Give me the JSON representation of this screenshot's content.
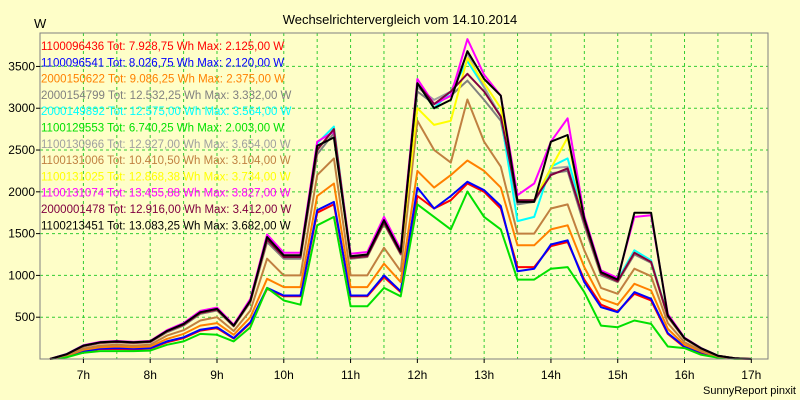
{
  "chart_data": {
    "type": "line",
    "title": "Wechselrichtervergleich vom 14.10.2014",
    "ylabel": "W",
    "xlabel": "",
    "footer": "SunnyReport pinxit",
    "grid": true,
    "legend_placement": "top-left",
    "xlim": [
      6.35,
      17.25
    ],
    "ylim": [
      0,
      3900
    ],
    "yticks": [
      500,
      1000,
      1500,
      2000,
      2500,
      3000,
      3500
    ],
    "xticks": [
      {
        "value": 7,
        "label": "7h"
      },
      {
        "value": 8,
        "label": "8h"
      },
      {
        "value": 9,
        "label": "9h"
      },
      {
        "value": 10,
        "label": "10h"
      },
      {
        "value": 11,
        "label": "11h"
      },
      {
        "value": 12,
        "label": "12h"
      },
      {
        "value": 13,
        "label": "13h"
      },
      {
        "value": 14,
        "label": "14h"
      },
      {
        "value": 15,
        "label": "15h"
      },
      {
        "value": 16,
        "label": "16h"
      },
      {
        "value": 17,
        "label": "17h"
      }
    ],
    "x": [
      6.5,
      6.75,
      7.0,
      7.25,
      7.5,
      7.75,
      8.0,
      8.25,
      8.5,
      8.75,
      9.0,
      9.25,
      9.5,
      9.75,
      10.0,
      10.25,
      10.5,
      10.75,
      11.0,
      11.25,
      11.5,
      11.75,
      12.0,
      12.25,
      12.5,
      12.75,
      13.0,
      13.25,
      13.5,
      13.75,
      14.0,
      14.25,
      14.5,
      14.75,
      15.0,
      15.25,
      15.5,
      15.75,
      16.0,
      16.25,
      16.5,
      16.75,
      17.0
    ],
    "series": [
      {
        "name": "1100096436",
        "label": "1100096436 Tot: 7.928,75 Wh Max: 2.125,00 W",
        "color": "#ff0000",
        "values": [
          0,
          30,
          90,
          120,
          120,
          115,
          125,
          200,
          250,
          340,
          370,
          245,
          430,
          840,
          750,
          750,
          1750,
          1850,
          750,
          750,
          980,
          800,
          1950,
          1800,
          1900,
          2100,
          2000,
          1800,
          1100,
          1100,
          1350,
          1400,
          950,
          650,
          570,
          780,
          700,
          300,
          140,
          70,
          20,
          5,
          0
        ]
      },
      {
        "name": "1100096541",
        "label": "1100096541 Tot: 8.026,75 Wh Max: 2.120,00 W",
        "color": "#0000ff",
        "values": [
          0,
          35,
          95,
          125,
          130,
          125,
          130,
          210,
          260,
          350,
          380,
          250,
          440,
          850,
          760,
          760,
          1780,
          1880,
          760,
          760,
          1000,
          810,
          2050,
          1800,
          1950,
          2120,
          2020,
          1830,
          1050,
          1080,
          1370,
          1420,
          920,
          620,
          560,
          800,
          720,
          310,
          150,
          80,
          25,
          5,
          0
        ]
      },
      {
        "name": "2000150622",
        "label": "2000150622 Tot: 9.086,25 Wh Max: 2.375,00 W",
        "color": "#ff8000",
        "values": [
          0,
          40,
          110,
          140,
          150,
          140,
          150,
          240,
          300,
          400,
          430,
          290,
          500,
          960,
          860,
          860,
          1950,
          2100,
          860,
          860,
          1140,
          920,
          2250,
          2050,
          2200,
          2375,
          2250,
          2050,
          1360,
          1360,
          1550,
          1600,
          1100,
          720,
          650,
          900,
          820,
          360,
          170,
          90,
          25,
          5,
          0
        ]
      },
      {
        "name": "2000154799",
        "label": "2000154799 Tot: 12.532,25 Wh Max: 3.332,00 W",
        "color": "#808080",
        "values": [
          0,
          55,
          150,
          190,
          200,
          190,
          200,
          320,
          400,
          540,
          580,
          390,
          680,
          1400,
          1200,
          1200,
          2450,
          2700,
          1200,
          1220,
          1620,
          1250,
          3200,
          3050,
          3150,
          3330,
          3100,
          2850,
          1850,
          1880,
          2220,
          2250,
          1600,
          1000,
          920,
          1250,
          1150,
          500,
          240,
          120,
          35,
          8,
          0
        ]
      },
      {
        "name": "2000149892",
        "label": "2000149892 Tot: 12.575,00 Wh Max: 3.564,00 W",
        "color": "#00ffff",
        "values": [
          0,
          60,
          165,
          200,
          210,
          200,
          210,
          340,
          430,
          560,
          600,
          400,
          700,
          1450,
          1230,
          1230,
          2580,
          2780,
          1230,
          1240,
          1640,
          1270,
          3300,
          3000,
          3200,
          3564,
          3250,
          2900,
          1650,
          1700,
          2300,
          2400,
          1700,
          1050,
          950,
          1300,
          1180,
          520,
          250,
          130,
          40,
          10,
          0
        ]
      },
      {
        "name": "1100129553",
        "label": "1100129553 Tot: 6.740,25 Wh Max: 2.003,00 W",
        "color": "#00e000",
        "values": [
          0,
          20,
          75,
          95,
          95,
          95,
          100,
          170,
          210,
          300,
          290,
          210,
          380,
          850,
          700,
          650,
          1600,
          1700,
          630,
          630,
          850,
          750,
          1850,
          1700,
          1550,
          2003,
          1700,
          1550,
          950,
          950,
          1080,
          1100,
          800,
          400,
          380,
          460,
          420,
          150,
          130,
          50,
          15,
          3,
          0
        ]
      },
      {
        "name": "1100130966",
        "label": "1100130966 Tot: 12.927,00 Wh Max: 3.654,00 W",
        "color": "#a0a0a0",
        "values": [
          0,
          55,
          155,
          195,
          205,
          195,
          205,
          330,
          410,
          550,
          590,
          395,
          690,
          1430,
          1220,
          1220,
          2500,
          2750,
          1210,
          1230,
          1630,
          1260,
          3250,
          3100,
          3200,
          3654,
          3250,
          2900,
          1900,
          1900,
          2280,
          2300,
          1640,
          1020,
          930,
          1270,
          1160,
          510,
          245,
          125,
          38,
          9,
          0
        ]
      },
      {
        "name": "1100131006",
        "label": "1100131006 Tot: 10.410,50 Wh Max: 3.104,00 W",
        "color": "#c08040",
        "values": [
          0,
          45,
          125,
          160,
          170,
          160,
          170,
          280,
          345,
          460,
          500,
          335,
          580,
          1200,
          1000,
          1000,
          2200,
          2400,
          1000,
          1000,
          1330,
          1050,
          2850,
          2500,
          2350,
          3104,
          2600,
          2300,
          1500,
          1500,
          1800,
          1850,
          1300,
          850,
          780,
          1080,
          990,
          430,
          200,
          100,
          30,
          7,
          0
        ]
      },
      {
        "name": "1100131025",
        "label": "1100131025 Tot: 12.868,38 Wh Max: 3.734,00 W",
        "color": "#ffff00",
        "values": [
          0,
          55,
          155,
          195,
          205,
          195,
          205,
          330,
          410,
          550,
          590,
          395,
          690,
          1430,
          1220,
          1220,
          2500,
          2750,
          1210,
          1230,
          1630,
          1260,
          3000,
          2800,
          2850,
          3600,
          3300,
          3000,
          1900,
          1900,
          2280,
          2650,
          1640,
          1020,
          930,
          1270,
          1160,
          510,
          245,
          125,
          38,
          9,
          0
        ]
      },
      {
        "name": "1100131074",
        "label": "1100131074 Tot: 13.455,88 Wh Max: 3.827,00 W",
        "color": "#ff00ff",
        "values": [
          0,
          60,
          165,
          205,
          215,
          205,
          215,
          345,
          430,
          575,
          615,
          410,
          720,
          1490,
          1270,
          1270,
          2600,
          2720,
          1260,
          1280,
          1700,
          1310,
          3350,
          3050,
          3150,
          3827,
          3400,
          3150,
          1960,
          2100,
          2600,
          2880,
          1710,
          1060,
          970,
          1700,
          1720,
          540,
          255,
          130,
          40,
          10,
          0
        ]
      },
      {
        "name": "2000001478",
        "label": "2000001478 Tot: 12.916,00 Wh Max: 3.412,00 W",
        "color": "#800040",
        "values": [
          0,
          55,
          155,
          195,
          205,
          195,
          205,
          330,
          410,
          550,
          590,
          395,
          690,
          1430,
          1220,
          1220,
          2500,
          2750,
          1210,
          1230,
          1630,
          1260,
          3300,
          3050,
          3200,
          3412,
          3200,
          2900,
          1900,
          1900,
          2200,
          2280,
          1640,
          1020,
          930,
          1270,
          1160,
          510,
          245,
          125,
          38,
          9,
          0
        ]
      },
      {
        "name": "1100213451",
        "label": "1100213451 Tot: 13.083,25 Wh Max: 3.682,00 W",
        "color": "#000000",
        "values": [
          0,
          58,
          160,
          200,
          210,
          200,
          210,
          335,
          420,
          560,
          600,
          400,
          700,
          1460,
          1240,
          1240,
          2550,
          2650,
          1230,
          1250,
          1660,
          1280,
          3300,
          3000,
          3100,
          3682,
          3350,
          3150,
          1880,
          1880,
          2600,
          2680,
          1680,
          1040,
          950,
          1750,
          1750,
          520,
          250,
          128,
          39,
          9,
          0
        ]
      }
    ]
  }
}
